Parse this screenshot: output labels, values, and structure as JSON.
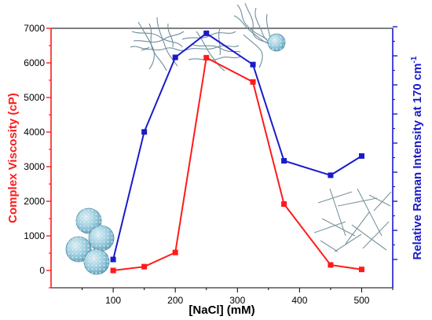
{
  "chart_data": {
    "type": "line",
    "xlabel": "[NaCl] (mM)",
    "ylabel_left": "Complex Viscosity (cP)",
    "ylabel_right": "Relative Raman Intensity at 170 cm",
    "ylabel_right_superscript": "-1",
    "xlim": [
      0,
      550
    ],
    "ylim_left": [
      -500,
      7000
    ],
    "x_ticks": [
      100,
      200,
      300,
      400,
      500
    ],
    "x_tick_labels": [
      "100",
      "200",
      "300",
      "400",
      "500"
    ],
    "y_ticks_left": [
      0,
      1000,
      2000,
      3000,
      4000,
      5000,
      6000,
      7000
    ],
    "y_tick_labels_left": [
      "0",
      "1000",
      "2000",
      "3000",
      "4000",
      "5000",
      "6000",
      "7000"
    ],
    "right_axis_tick_labels_shown": false,
    "grid": false,
    "legend": "none",
    "colors": {
      "viscosity": "#ff1a1a",
      "raman": "#1a1acc",
      "left_axis": "#ff1a1a",
      "right_axis": "#1a1acc",
      "frame": "#000000",
      "illustration": "#7fa3b5"
    },
    "series": [
      {
        "key": "viscosity",
        "axis": "left",
        "x": [
          100,
          150,
          200,
          250,
          325,
          375,
          450,
          500
        ],
        "values": [
          0,
          110,
          520,
          6150,
          5450,
          1920,
          160,
          30
        ]
      },
      {
        "key": "raman",
        "axis": "right",
        "x": [
          100,
          150,
          200,
          250,
          325,
          375,
          450,
          500
        ],
        "values": [
          0,
          0.53,
          0.84,
          0.94,
          0.81,
          0.41,
          0.35,
          0.43
        ]
      }
    ],
    "illustrations": [
      "spherical-micelle-cluster-icon",
      "entangled-wormlike-micelles-icon",
      "wormlike-micelle-network-icon",
      "branched-micelles-icon",
      "micelle-with-sphere-icon",
      "rodlike-micelles-icon"
    ]
  }
}
